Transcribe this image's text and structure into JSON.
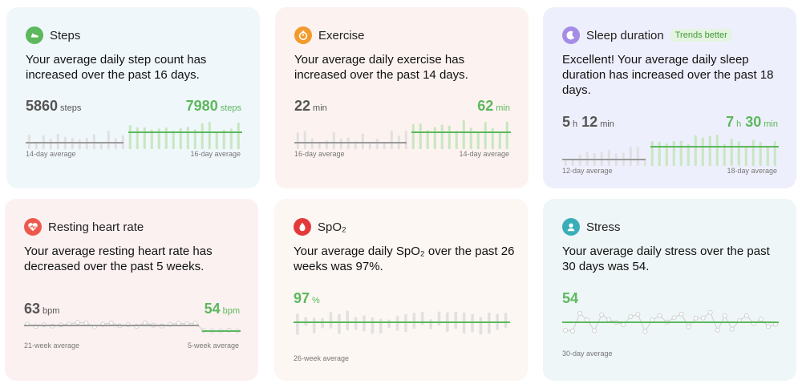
{
  "colors": {
    "green": "#5cb85c",
    "gray_line": "#9a9a9a",
    "bar_gray": "#e1e1e1",
    "bar_green": "#c8e7c2"
  },
  "cards": {
    "steps": {
      "title": "Steps",
      "icon": "shoe-icon",
      "summary": "Your average daily step count has increased over the past 16 days.",
      "left_value": "5860",
      "left_unit": "steps",
      "right_value": "7980",
      "right_unit": "steps",
      "left_caption": "14-day average",
      "right_caption": "16-day average"
    },
    "exercise": {
      "title": "Exercise",
      "icon": "stopwatch-icon",
      "summary": "Your average daily exercise has increased over the past 14 days.",
      "left_value": "22",
      "left_unit": "min",
      "right_value": "62",
      "right_unit": "min",
      "left_caption": "16-day average",
      "right_caption": "14-day average"
    },
    "sleep": {
      "title": "Sleep duration",
      "icon": "moon-icon",
      "badge": "Trends better",
      "summary": "Excellent!  Your average daily sleep duration has increased over the past 18 days.",
      "left_h": "5",
      "left_h_unit": "h",
      "left_m": "12",
      "left_m_unit": "min",
      "right_h": "7",
      "right_h_unit": "h",
      "right_m": "30",
      "right_m_unit": "min",
      "left_caption": "12-day average",
      "right_caption": "18-day average"
    },
    "heart": {
      "title": "Resting heart rate",
      "icon": "heart-icon",
      "summary": "Your average resting heart rate has decreased over the past 5 weeks.",
      "left_value": "63",
      "left_unit": "bpm",
      "right_value": "54",
      "right_unit": "bpm",
      "left_caption": "21-week average",
      "right_caption": "5-week average"
    },
    "spo2": {
      "title": "SpO₂",
      "icon": "blood-drop-icon",
      "summary": "Your average daily SpO₂ over the past 26 weeks was 97%.",
      "value": "97",
      "unit": "%",
      "caption": "26-week average"
    },
    "stress": {
      "title": "Stress",
      "icon": "stress-face-icon",
      "summary": "Your average daily stress over the past 30 days was 54.",
      "value": "54",
      "caption": "30-day average"
    }
  }
}
